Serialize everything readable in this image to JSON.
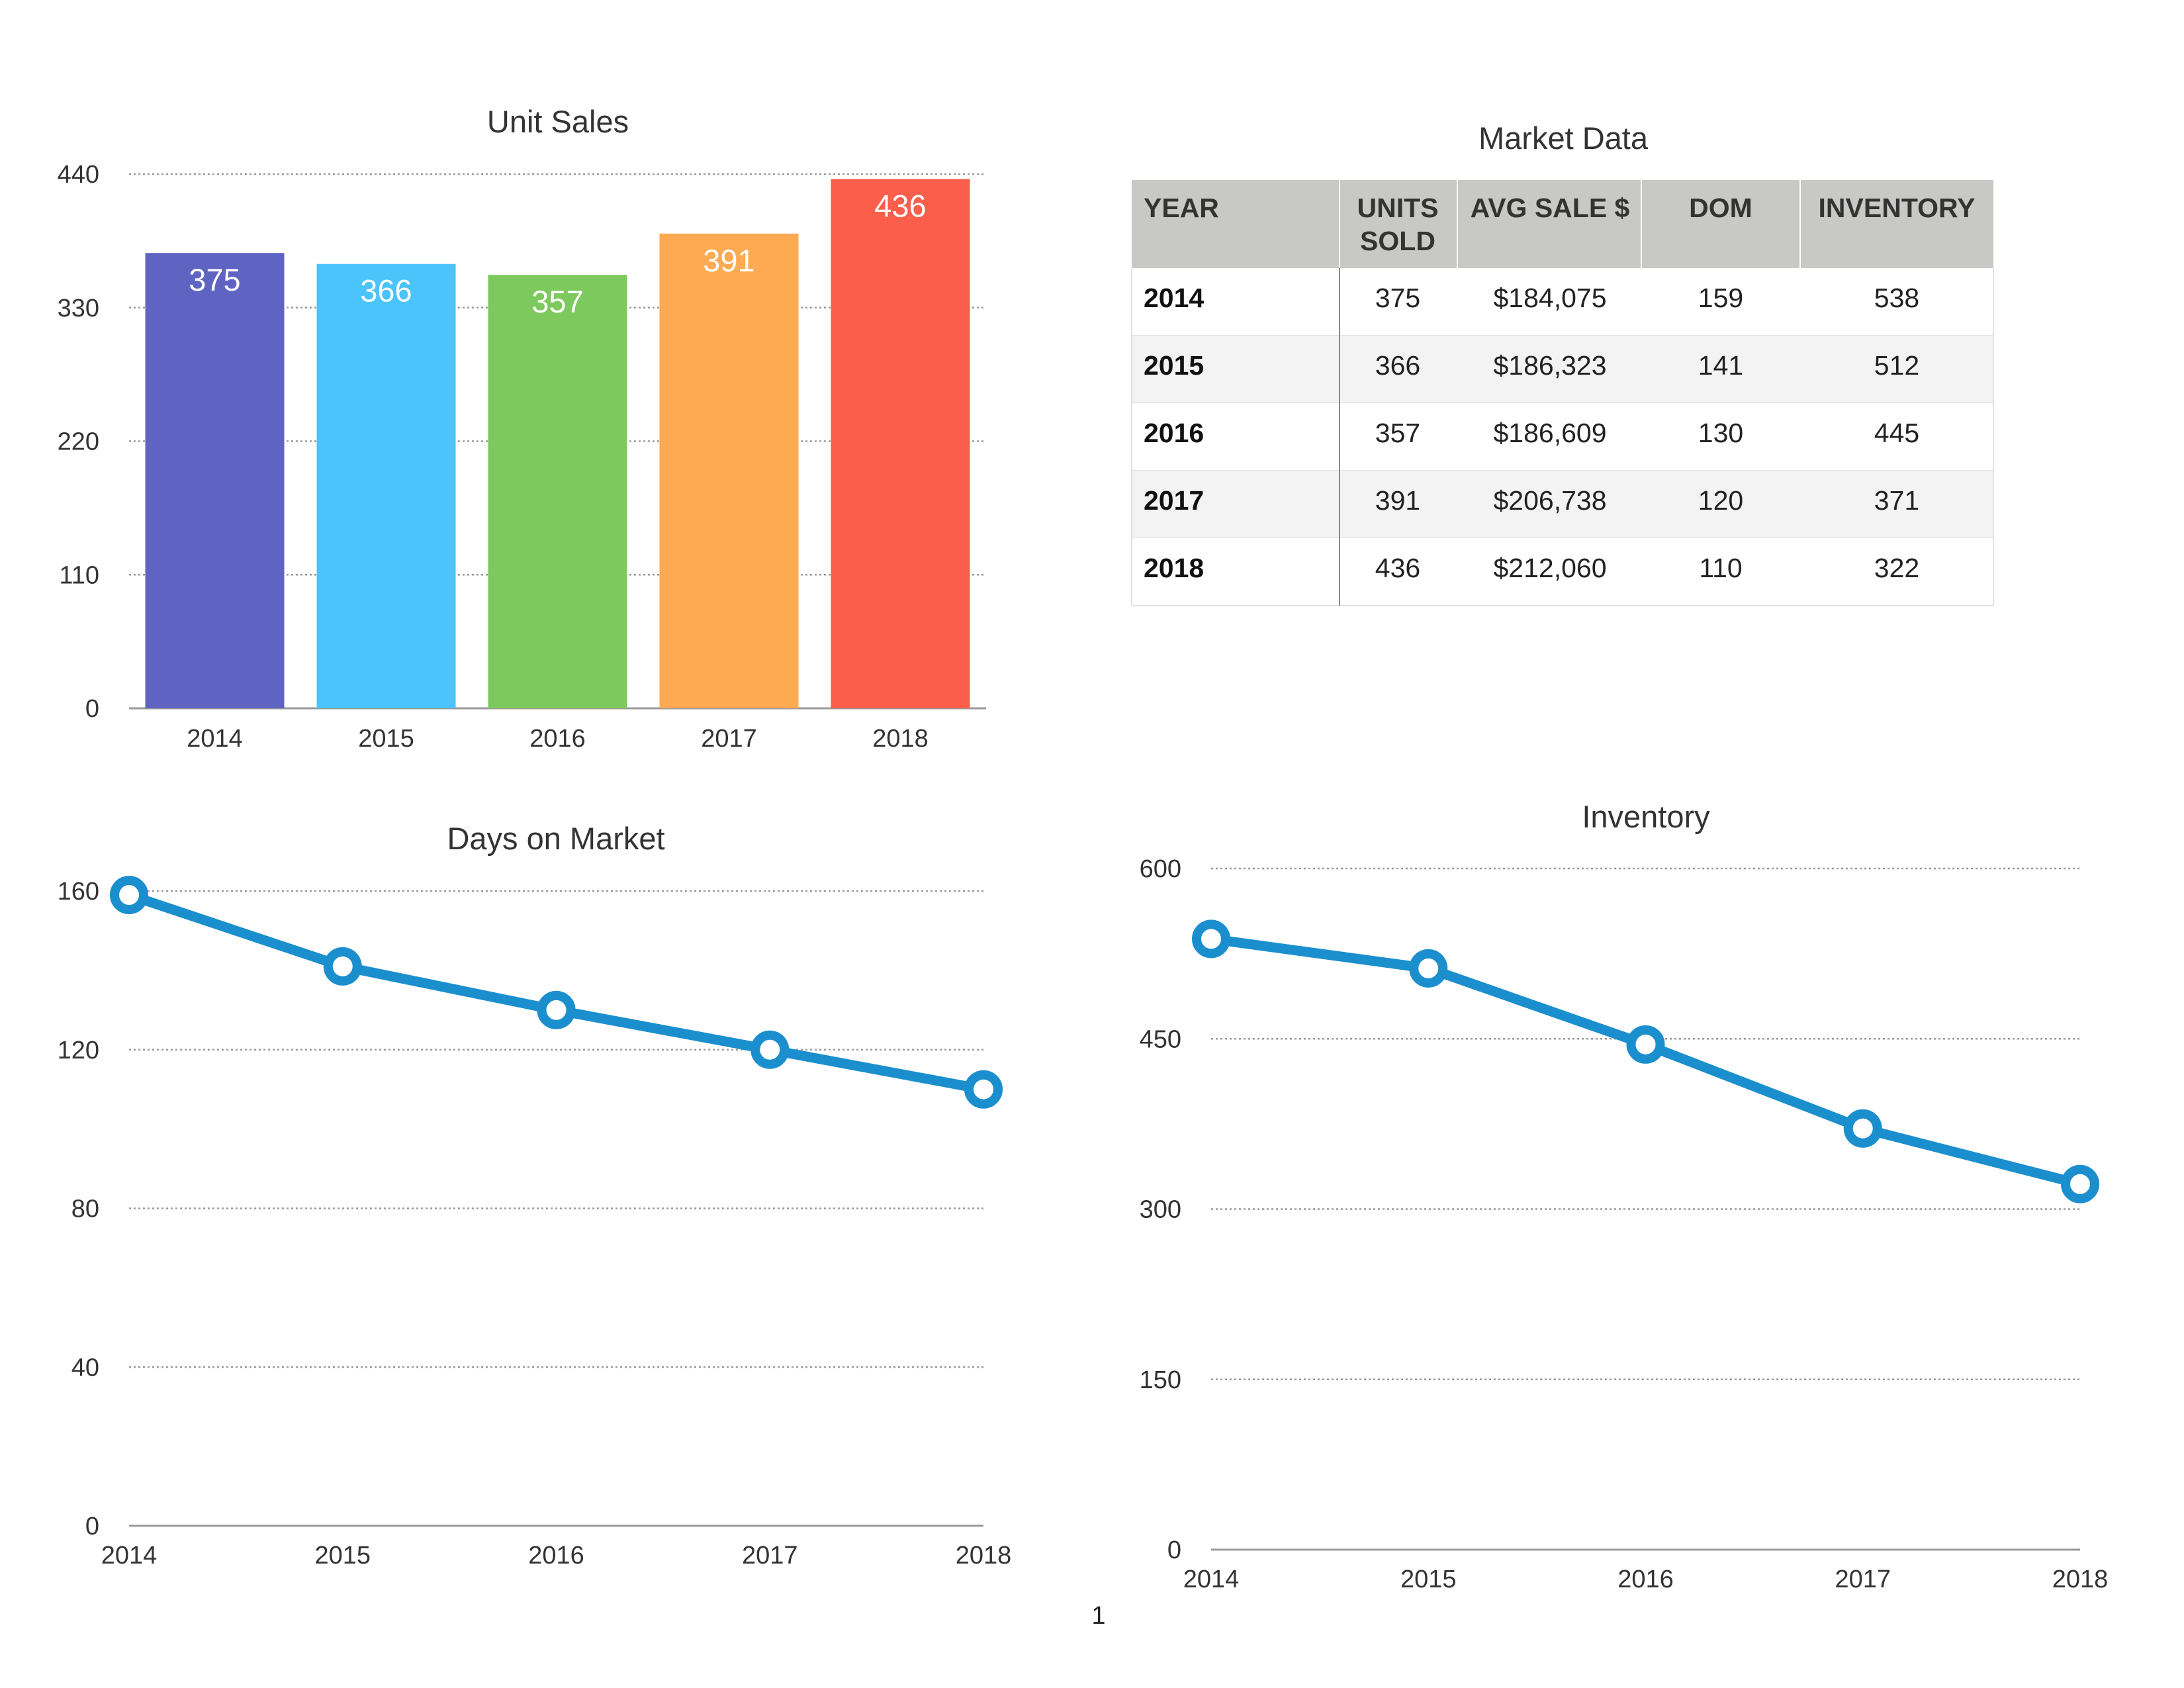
{
  "chart_data": [
    {
      "type": "bar",
      "title": "Unit Sales",
      "categories": [
        "2014",
        "2015",
        "2016",
        "2017",
        "2018"
      ],
      "values": [
        375,
        366,
        357,
        391,
        436
      ],
      "data_labels": [
        "375",
        "366",
        "357",
        "391",
        "436"
      ],
      "ylim": [
        0,
        440
      ],
      "yticks": [
        "0",
        "110",
        "220",
        "330",
        "440"
      ],
      "bar_colors": [
        "#5f63c2",
        "#4bc3fb",
        "#7ec95d",
        "#fdaa52",
        "#fb5e4b"
      ],
      "grid": true
    },
    {
      "type": "table",
      "title": "Market Data",
      "columns": [
        "YEAR",
        "UNITS SOLD",
        "AVG SALE $",
        "DOM",
        "INVENTORY"
      ],
      "rows": [
        [
          "2014",
          "375",
          "$184,075",
          "159",
          "538"
        ],
        [
          "2015",
          "366",
          "$186,323",
          "141",
          "512"
        ],
        [
          "2016",
          "357",
          "$186,609",
          "130",
          "445"
        ],
        [
          "2017",
          "391",
          "$206,738",
          "120",
          "371"
        ],
        [
          "2018",
          "436",
          "$212,060",
          "110",
          "322"
        ]
      ],
      "header_color": "#c8c8c4",
      "alt_row_color": "#f3f3f3"
    },
    {
      "type": "line",
      "title": "Days on Market",
      "x": [
        "2014",
        "2015",
        "2016",
        "2017",
        "2018"
      ],
      "values": [
        159,
        141,
        130,
        120,
        110
      ],
      "ylim": [
        0,
        160
      ],
      "yticks": [
        "0",
        "40",
        "80",
        "120",
        "160"
      ],
      "color": "#1b8fce",
      "grid": true
    },
    {
      "type": "line",
      "title": "Inventory",
      "x": [
        "2014",
        "2015",
        "2016",
        "2017",
        "2018"
      ],
      "values": [
        538,
        512,
        445,
        371,
        322
      ],
      "ylim": [
        0,
        600
      ],
      "yticks": [
        "0",
        "150",
        "300",
        "450",
        "600"
      ],
      "color": "#1b8fce",
      "grid": true
    }
  ],
  "page_number": "1"
}
